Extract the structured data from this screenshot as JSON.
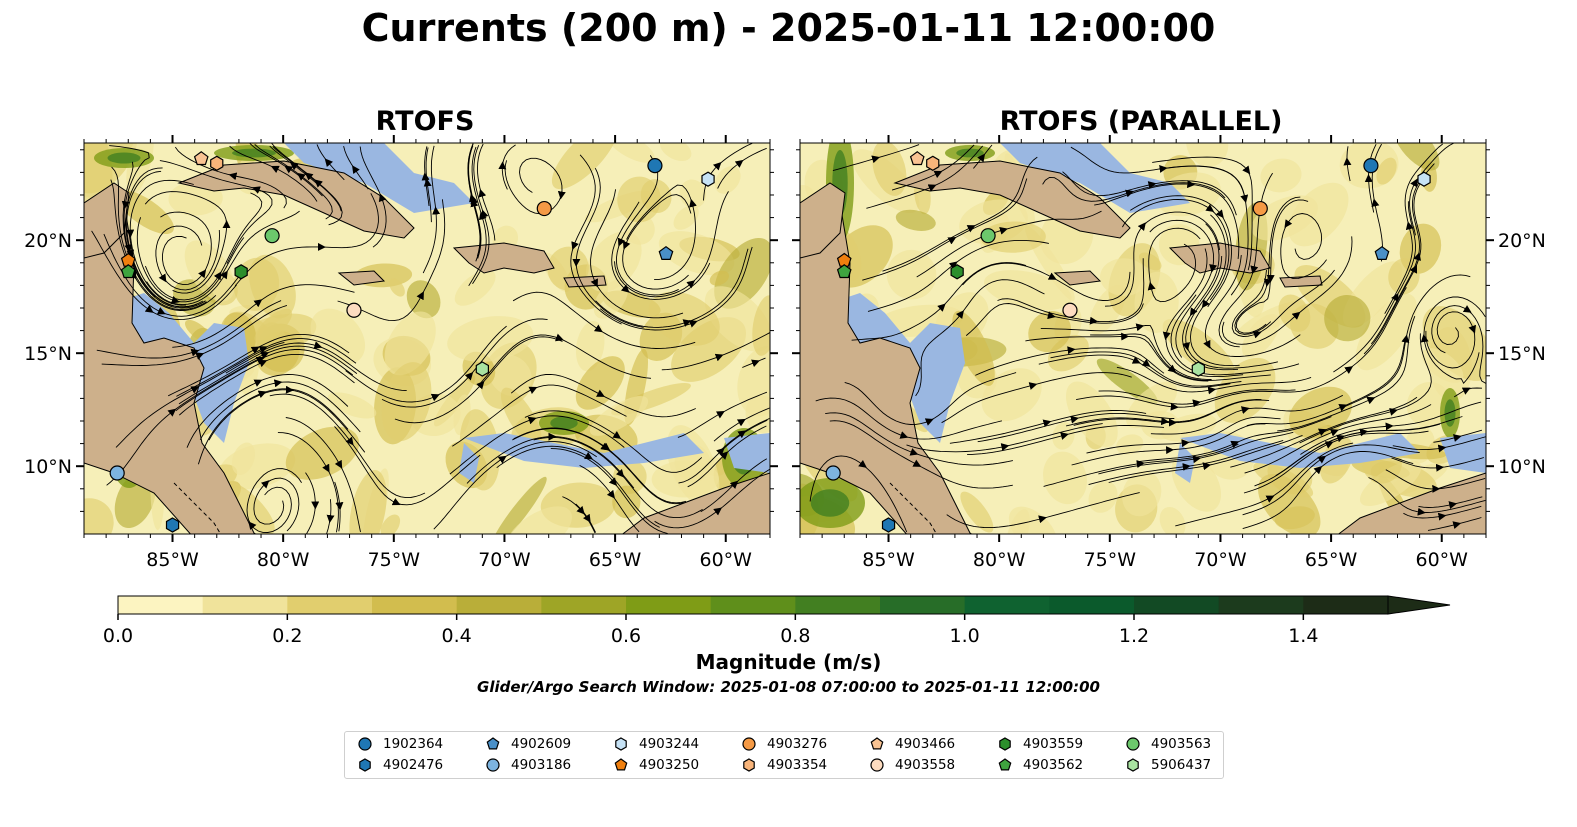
{
  "title": "Currents (200 m) - 2025-01-11 12:00:00",
  "panels": [
    {
      "title": "RTOFS"
    },
    {
      "title": "RTOFS (PARALLEL)"
    }
  ],
  "map": {
    "lon_range": [
      -89,
      -58
    ],
    "lat_range": [
      7,
      24.3
    ],
    "lon_ticks": [
      "85°W",
      "80°W",
      "75°W",
      "70°W",
      "65°W",
      "60°W"
    ],
    "lat_ticks": [
      "20°N",
      "15°N",
      "10°N"
    ],
    "land_color": "#cdb08b",
    "shallow_color": "#9ab7e1",
    "ocean_color": "#f6efb8"
  },
  "colorbar": {
    "label": "Magnitude (m/s)",
    "ticks": [
      "0.0",
      "0.2",
      "0.4",
      "0.6",
      "0.8",
      "1.0",
      "1.2",
      "1.4"
    ],
    "range": [
      0,
      1.5
    ],
    "extend": "max",
    "colors": [
      "#fcf4c1",
      "#f0e39b",
      "#e1ce6e",
      "#d2bd4e",
      "#b9ae39",
      "#9ea526",
      "#7f9c16",
      "#5f8f1b",
      "#427f21",
      "#276d28",
      "#0f6230",
      "#0b5a2c",
      "#124a24",
      "#1c3b1d",
      "#1d2c17"
    ]
  },
  "note": "Glider/Argo Search Window: 2025-01-08 07:00:00 to 2025-01-11 12:00:00",
  "legend": [
    {
      "id": "1902364",
      "marker": "circle",
      "color": "#1f77b4"
    },
    {
      "id": "4902476",
      "marker": "hexagon",
      "color": "#1f77b4"
    },
    {
      "id": "4902609",
      "marker": "pentagon",
      "color": "#4a90c8"
    },
    {
      "id": "4903186",
      "marker": "circle",
      "color": "#7db4e0"
    },
    {
      "id": "4903244",
      "marker": "hexagon",
      "color": "#c6e2f5"
    },
    {
      "id": "4903250",
      "marker": "pentagon",
      "color": "#f07f0e"
    },
    {
      "id": "4903276",
      "marker": "circle",
      "color": "#f59a45"
    },
    {
      "id": "4903354",
      "marker": "hexagon",
      "color": "#f8b47a"
    },
    {
      "id": "4903466",
      "marker": "pentagon",
      "color": "#f9c393"
    },
    {
      "id": "4903558",
      "marker": "circle",
      "color": "#fddcc0"
    },
    {
      "id": "4903559",
      "marker": "hexagon",
      "color": "#2c8f2c"
    },
    {
      "id": "4903562",
      "marker": "pentagon",
      "color": "#3fa43f"
    },
    {
      "id": "4903563",
      "marker": "circle",
      "color": "#6cc86c"
    },
    {
      "id": "5906437",
      "marker": "hexagon",
      "color": "#a9e3a1"
    }
  ],
  "floats": [
    {
      "id": "1902364",
      "lon": -63.2,
      "lat": 23.3
    },
    {
      "id": "4902476",
      "lon": -85.0,
      "lat": 7.4
    },
    {
      "id": "4902609",
      "lon": -62.7,
      "lat": 19.4
    },
    {
      "id": "4903186",
      "lon": -87.5,
      "lat": 9.7
    },
    {
      "id": "4903244",
      "lon": -60.8,
      "lat": 22.7
    },
    {
      "id": "4903250",
      "lon": -87.0,
      "lat": 19.1
    },
    {
      "id": "4903276",
      "lon": -68.2,
      "lat": 21.4
    },
    {
      "id": "4903354",
      "lon": -83.0,
      "lat": 23.4
    },
    {
      "id": "4903466",
      "lon": -83.7,
      "lat": 23.6
    },
    {
      "id": "4903558",
      "lon": -76.8,
      "lat": 16.9
    },
    {
      "id": "4903559",
      "lon": -81.9,
      "lat": 18.6
    },
    {
      "id": "4903562",
      "lon": -87.0,
      "lat": 18.6
    },
    {
      "id": "4903563",
      "lon": -80.5,
      "lat": 20.2
    },
    {
      "id": "5906437",
      "lon": -71.0,
      "lat": 14.3
    }
  ]
}
